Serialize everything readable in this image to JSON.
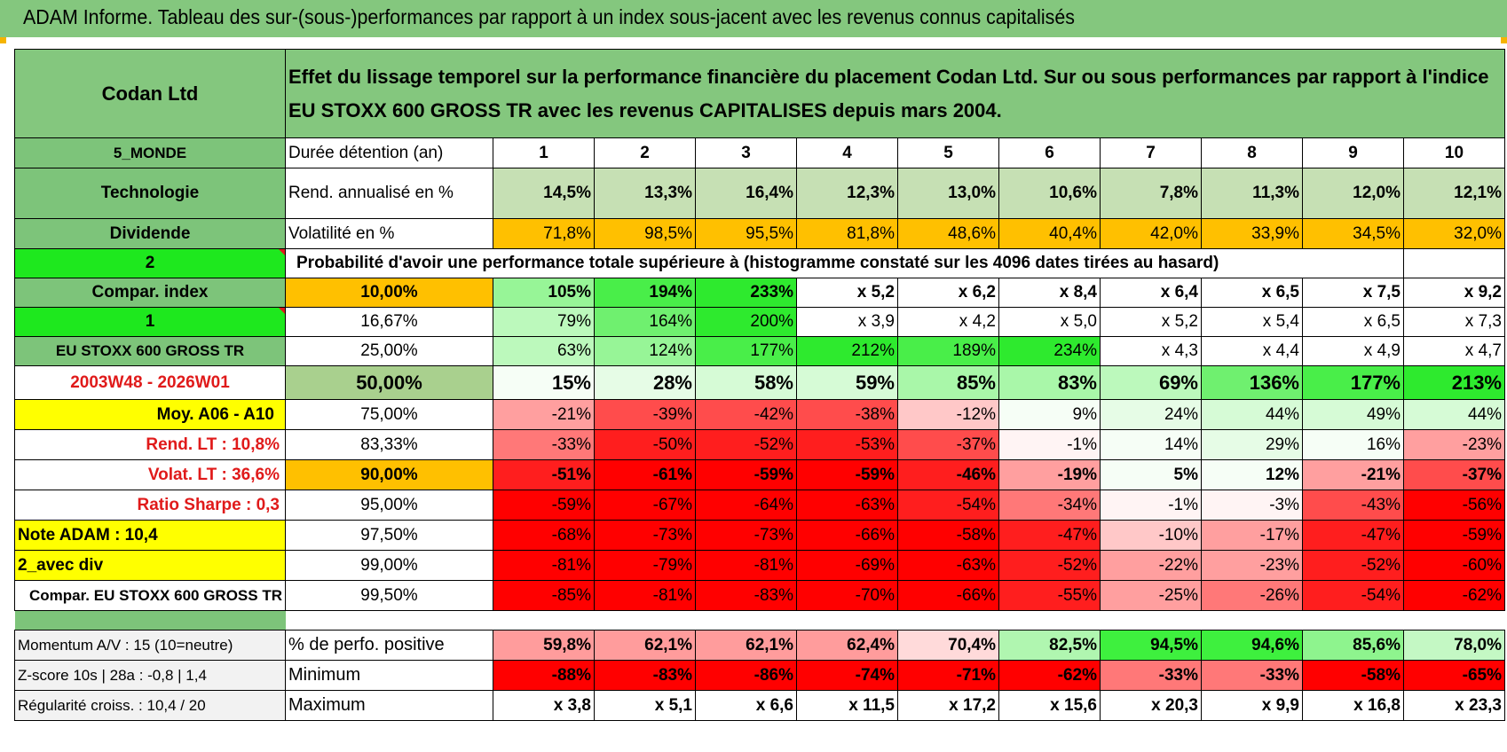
{
  "title": "ADAM Informe. Tableau des sur-(sous-)performances par rapport à un index sous-jacent avec les revenus connus capitalisés",
  "header": {
    "company": "Codan Ltd",
    "description": "Effet du lissage temporel sur la performance financière du placement Codan Ltd. Sur ou sous performances par rapport à l'indice EU STOXX 600 GROSS TR avec les revenus CAPITALISES depuis mars 2004."
  },
  "left_labels": {
    "region": "5_MONDE",
    "sector": "Technologie",
    "type": "Dividende",
    "selector_1": "2",
    "compar_index": "Compar. index",
    "selector_2": "1",
    "index_name": "EU STOXX 600 GROSS TR",
    "period": "2003W48 - 2026W01",
    "moy": "Moy. A06 - A10",
    "rend_lt": "Rend. LT :    10,8%",
    "volat_lt": "Volat. LT :    36,6%",
    "sharpe": "Ratio Sharpe :     0,3",
    "note": "Note ADAM : 10,4",
    "avec_div": "2_avec div",
    "compar_full": "Compar. EU STOXX 600 GROSS TR",
    "momentum": "Momentum A/V : 15 (10=neutre)",
    "zscore": "Z-score 10s | 28a : -0,8 | 1,4",
    "regularite": "Régularité croiss. : 10,4 / 20"
  },
  "stats": {
    "duration_label": "Durée détention (an)",
    "years": [
      "1",
      "2",
      "3",
      "4",
      "5",
      "6",
      "7",
      "8",
      "9",
      "10"
    ],
    "rend_label": "Rend. annualisé en %",
    "rend": [
      "14,5%",
      "13,3%",
      "16,4%",
      "12,3%",
      "13,0%",
      "10,6%",
      "7,8%",
      "11,3%",
      "12,0%",
      "12,1%"
    ],
    "vol_label": "Volatilité en %",
    "vol": [
      "71,8%",
      "98,5%",
      "95,5%",
      "81,8%",
      "48,6%",
      "40,4%",
      "42,0%",
      "33,9%",
      "34,5%",
      "32,0%"
    ],
    "prob_heading": "Probabilité d'avoir une performance totale supérieure à (histogramme constaté sur les 4096 dates tirées au hasard)"
  },
  "prob_rows": [
    {
      "pct": "10,00%",
      "vals": [
        "105%",
        "194%",
        "233%",
        "x 5,2",
        "x 6,2",
        "x 8,4",
        "x 6,4",
        "x 6,5",
        "x 7,5",
        "x 9,2"
      ]
    },
    {
      "pct": "16,67%",
      "vals": [
        "79%",
        "164%",
        "200%",
        "x 3,9",
        "x 4,2",
        "x 5,0",
        "x 5,2",
        "x 5,4",
        "x 6,5",
        "x 7,3"
      ]
    },
    {
      "pct": "25,00%",
      "vals": [
        "63%",
        "124%",
        "177%",
        "212%",
        "189%",
        "234%",
        "x 4,3",
        "x 4,4",
        "x 4,9",
        "x 4,7"
      ]
    },
    {
      "pct": "50,00%",
      "vals": [
        "15%",
        "28%",
        "58%",
        "59%",
        "85%",
        "83%",
        "69%",
        "136%",
        "177%",
        "213%"
      ]
    },
    {
      "pct": "75,00%",
      "vals": [
        "-21%",
        "-39%",
        "-42%",
        "-38%",
        "-12%",
        "9%",
        "24%",
        "44%",
        "49%",
        "44%"
      ]
    },
    {
      "pct": "83,33%",
      "vals": [
        "-33%",
        "-50%",
        "-52%",
        "-53%",
        "-37%",
        "-1%",
        "14%",
        "29%",
        "16%",
        "-23%"
      ]
    },
    {
      "pct": "90,00%",
      "vals": [
        "-51%",
        "-61%",
        "-59%",
        "-59%",
        "-46%",
        "-19%",
        "5%",
        "12%",
        "-21%",
        "-37%"
      ]
    },
    {
      "pct": "95,00%",
      "vals": [
        "-59%",
        "-67%",
        "-64%",
        "-63%",
        "-54%",
        "-34%",
        "-1%",
        "-3%",
        "-43%",
        "-56%"
      ]
    },
    {
      "pct": "97,50%",
      "vals": [
        "-68%",
        "-73%",
        "-73%",
        "-66%",
        "-58%",
        "-47%",
        "-10%",
        "-17%",
        "-47%",
        "-59%"
      ]
    },
    {
      "pct": "99,00%",
      "vals": [
        "-81%",
        "-79%",
        "-81%",
        "-69%",
        "-63%",
        "-52%",
        "-22%",
        "-23%",
        "-52%",
        "-60%"
      ]
    },
    {
      "pct": "99,50%",
      "vals": [
        "-85%",
        "-81%",
        "-83%",
        "-70%",
        "-66%",
        "-55%",
        "-25%",
        "-26%",
        "-54%",
        "-62%"
      ]
    }
  ],
  "bottom": {
    "pos_label": "% de perfo. positive",
    "pos": [
      "59,8%",
      "62,1%",
      "62,1%",
      "62,4%",
      "70,4%",
      "82,5%",
      "94,5%",
      "94,6%",
      "85,6%",
      "78,0%"
    ],
    "min_label": "Minimum",
    "min": [
      "-88%",
      "-83%",
      "-86%",
      "-74%",
      "-71%",
      "-62%",
      "-33%",
      "-33%",
      "-58%",
      "-65%"
    ],
    "max_label": "Maximum",
    "max": [
      "x 3,8",
      "x 5,1",
      "x 6,6",
      "x 11,5",
      "x 17,2",
      "x 15,6",
      "x 20,3",
      "x 9,9",
      "x 16,8",
      "x 23,3"
    ]
  },
  "colors": {
    "header_green": "#84c77e",
    "label_green": "#7dc47a",
    "bright_green": "#1ee81e",
    "pale_green": "#c6e0b4",
    "orange": "#ffc000",
    "yellow": "#ffff00",
    "red_text": "#e01a1a"
  }
}
